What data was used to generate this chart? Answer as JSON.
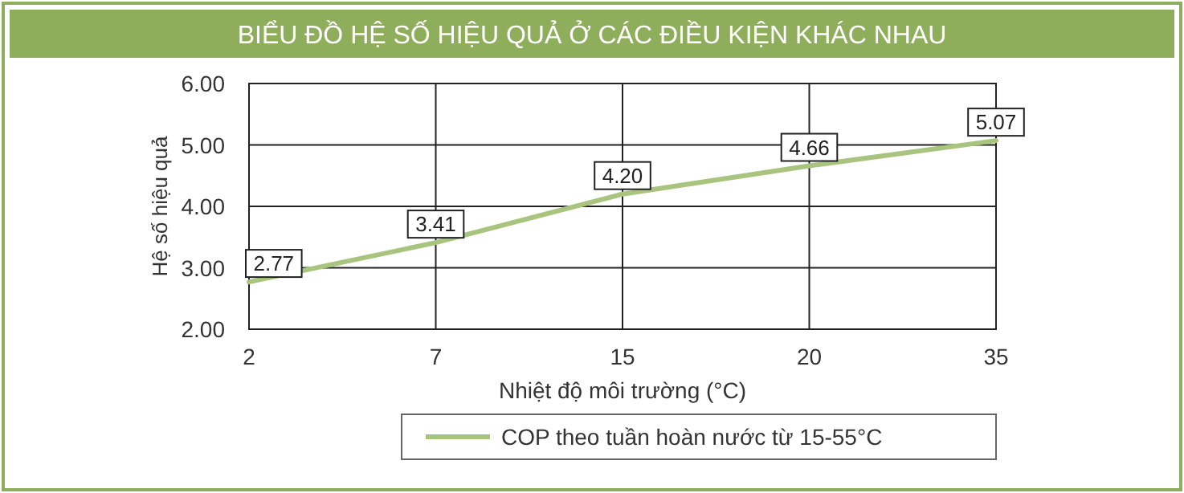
{
  "chart_data": {
    "type": "line",
    "title": "BIỂU ĐỒ HỆ SỐ HIỆU QUẢ Ở CÁC ĐIỀU KIỆN KHÁC NHAU",
    "xlabel": "Nhiệt độ môi trường (°C)",
    "ylabel": "Hệ số hiệu quả",
    "categories": [
      "2",
      "7",
      "15",
      "20",
      "35"
    ],
    "series": [
      {
        "name": "COP theo tuần hoàn nước từ 15-55°C",
        "color": "#a9c47f",
        "values": [
          2.77,
          3.41,
          4.2,
          4.66,
          5.07
        ],
        "value_labels": [
          "2.77",
          "3.41",
          "4.20",
          "4.66",
          "5.07"
        ]
      }
    ],
    "ylim": [
      2,
      6
    ],
    "yticks": [
      {
        "value": 2,
        "label": "2.00"
      },
      {
        "value": 3,
        "label": "3.00"
      },
      {
        "value": 4,
        "label": "4.00"
      },
      {
        "value": 5,
        "label": "5.00"
      },
      {
        "value": 6,
        "label": "6.00"
      }
    ],
    "grid": true,
    "legend": "bottom",
    "marker": "none",
    "line_style": "solid"
  }
}
